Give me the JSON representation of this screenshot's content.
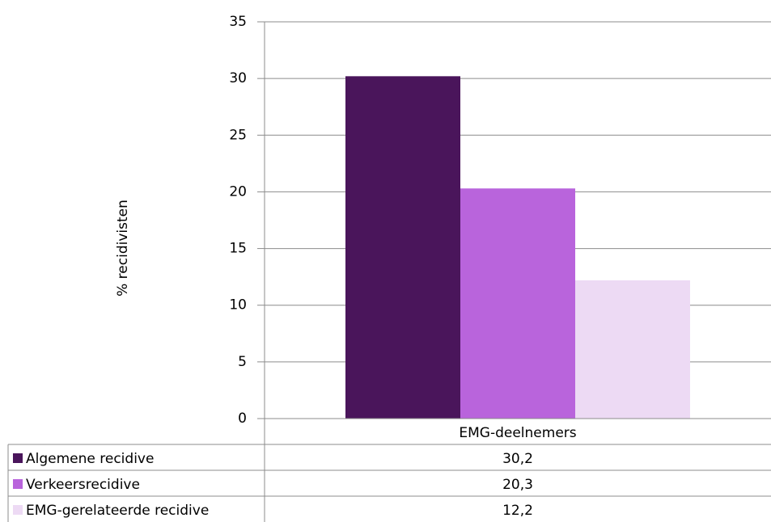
{
  "chart_data": {
    "type": "bar",
    "y_label": "% recidivisten",
    "categories": [
      "EMG-deelnemers"
    ],
    "series": [
      {
        "name": "Algemene recidive",
        "color": "#4a155b",
        "values": [
          30.2
        ],
        "value_labels": [
          "30,2"
        ]
      },
      {
        "name": "Verkeersrecidive",
        "color": "#b964dc",
        "values": [
          20.3
        ],
        "value_labels": [
          "20,3"
        ]
      },
      {
        "name": "EMG-gerelateerde recidive",
        "color": "#eddaf4",
        "values": [
          12.2
        ],
        "value_labels": [
          "12,2"
        ]
      }
    ],
    "ylim": [
      0,
      35
    ],
    "yticks": [
      0,
      5,
      10,
      15,
      20,
      25,
      30,
      35
    ],
    "grid": true
  }
}
